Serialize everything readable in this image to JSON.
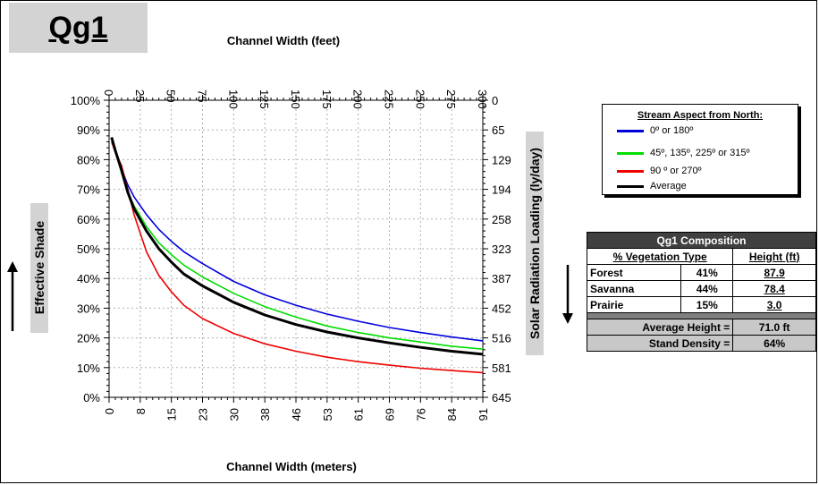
{
  "title": "Qg1",
  "chart_data": {
    "type": "line",
    "top_axis_label": "Channel Width (feet)",
    "top_ticks": [
      "0",
      "25",
      "50",
      "75",
      "100",
      "125",
      "150",
      "175",
      "200",
      "225",
      "250",
      "275",
      "300"
    ],
    "xlabel": "Channel Width (meters)",
    "x_ticks": [
      "0",
      "8",
      "15",
      "23",
      "30",
      "38",
      "46",
      "53",
      "61",
      "69",
      "76",
      "84",
      "91"
    ],
    "ylabel": "Effective Shade",
    "y_ticks": [
      "0%",
      "10%",
      "20%",
      "30%",
      "40%",
      "50%",
      "60%",
      "70%",
      "80%",
      "90%",
      "100%"
    ],
    "y2label": "Solar Radiation Loading (ly/day)",
    "y2_ticks": [
      "645",
      "581",
      "516",
      "452",
      "387",
      "323",
      "258",
      "194",
      "129",
      "65",
      "0"
    ],
    "xlim": [
      0,
      300
    ],
    "ylim": [
      0,
      1
    ],
    "grid": true,
    "x": [
      2,
      5,
      10,
      15,
      20,
      30,
      40,
      50,
      60,
      75,
      100,
      125,
      150,
      175,
      200,
      225,
      250,
      275,
      300
    ],
    "series": [
      {
        "name": "0º or 180º",
        "color": "#0000dd",
        "values": [
          0.875,
          0.835,
          0.77,
          0.715,
          0.675,
          0.615,
          0.565,
          0.525,
          0.49,
          0.45,
          0.39,
          0.345,
          0.31,
          0.28,
          0.256,
          0.235,
          0.218,
          0.203,
          0.19
        ]
      },
      {
        "name": "45º, 135º, 225º or 315º",
        "color": "#00dd00",
        "values": [
          0.875,
          0.83,
          0.755,
          0.69,
          0.645,
          0.575,
          0.52,
          0.48,
          0.445,
          0.405,
          0.35,
          0.305,
          0.27,
          0.24,
          0.218,
          0.2,
          0.186,
          0.172,
          0.162
        ]
      },
      {
        "name": "90 º or 270º",
        "color": "#ee0000",
        "values": [
          0.86,
          0.825,
          0.78,
          0.7,
          0.615,
          0.49,
          0.41,
          0.355,
          0.31,
          0.265,
          0.215,
          0.18,
          0.155,
          0.135,
          0.12,
          0.108,
          0.098,
          0.09,
          0.083
        ]
      },
      {
        "name": "Average",
        "color": "#000000",
        "values": [
          0.875,
          0.83,
          0.765,
          0.69,
          0.635,
          0.56,
          0.5,
          0.455,
          0.415,
          0.375,
          0.32,
          0.277,
          0.245,
          0.22,
          0.2,
          0.183,
          0.168,
          0.155,
          0.145
        ]
      }
    ]
  },
  "legend": {
    "title": "Stream Aspect from North:",
    "position": "top-right",
    "items": [
      {
        "label": "0º or 180º",
        "color": "#0000dd"
      },
      {
        "label": "45º, 135º, 225º or 315º",
        "color": "#00dd00"
      },
      {
        "label": "90 º or 270º",
        "color": "#ee0000"
      },
      {
        "label": "Average",
        "color": "#000000"
      }
    ]
  },
  "composition": {
    "title": "Qg1 Composition",
    "col1": "% Vegetation Type",
    "col2": "Height (ft)",
    "rows": [
      {
        "type": "Forest",
        "pct": "41%",
        "height": "87.9"
      },
      {
        "type": "Savanna",
        "pct": "44%",
        "height": "78.4"
      },
      {
        "type": "Prairie",
        "pct": "15%",
        "height": "3.0"
      }
    ],
    "avg_label": "Average Height =",
    "avg_value": "71.0 ft",
    "density_label": "Stand Density =",
    "density_value": "64%"
  }
}
